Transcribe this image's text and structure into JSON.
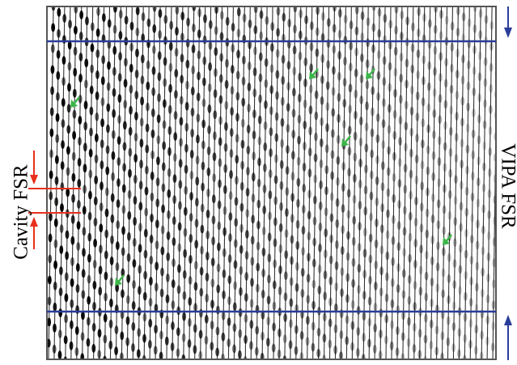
{
  "labels": {
    "cavity_fsr": "Cavity FSR",
    "vipa_fsr": "VIPA FSR"
  }
}
